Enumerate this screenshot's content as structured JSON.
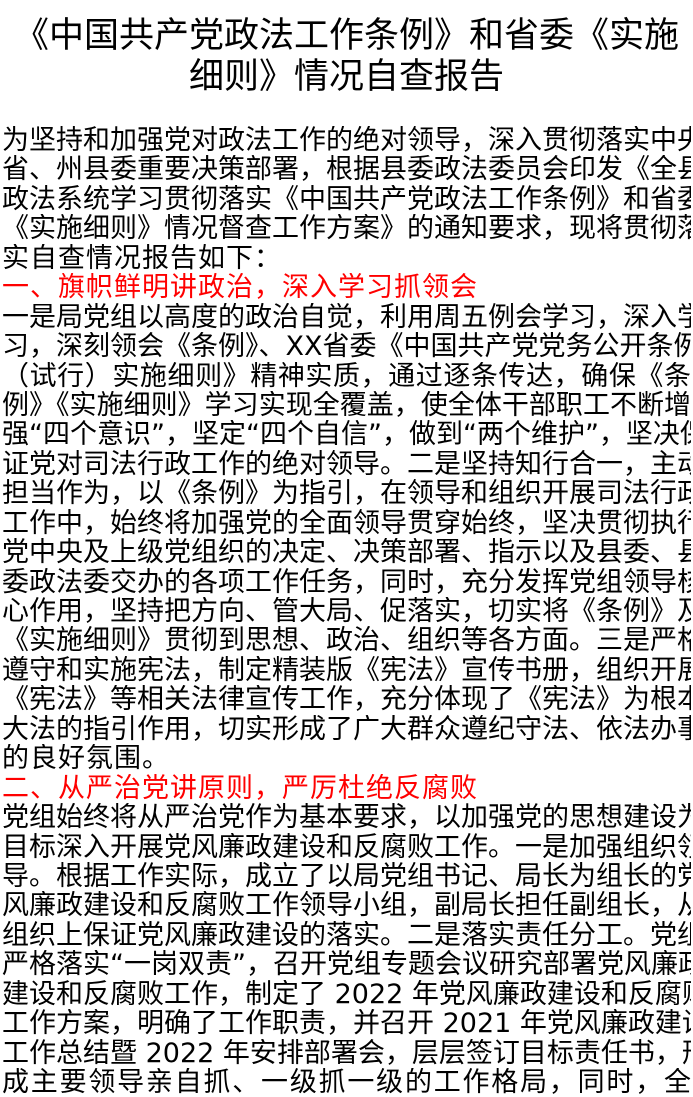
{
  "title": {
    "lines": [
      "《中国共产党政法工作条例》和省委《实施",
      "细则》情况自查报告"
    ]
  },
  "intro": {
    "lines": [
      "为坚持和加强党对政法工作的绝对领导，深入贯彻落实中央",
      "省、州县委重要决策部署，根据县委政法委员会印发《全县",
      "政法系统学习贯彻落实《中国共产党政法工作条例》和省委",
      "《实施细则》情况督查工作方案》的通知要求，现将贯彻落",
      "实自查情况报告如下："
    ]
  },
  "section1": {
    "heading": "一、旗帜鲜明讲政治，深入学习抓领会",
    "lines": [
      "一是局党组以高度的政治自觉，利用周五例会学习，深入学",
      "习，深刻领会《条例》、XX省委《中国共产党党务公开条例",
      "（试行）实施细则》精神实质，通过逐条传达，确保《条",
      "例》《实施细则》学习实现全覆盖，使全体干部职工不断增",
      "强“四个意识”，坚定“四个自信”，做到“两个维护”，坚决保",
      "证党对司法行政工作的绝对领导。二是坚持知行合一，主动",
      "担当作为，以《条例》为指引，在领导和组织开展司法行政",
      "工作中，始终将加强党的全面领导贯穿始终，坚决贯彻执行",
      "党中央及上级党组织的决定、决策部署、指示以及县委、县",
      "委政法委交办的各项工作任务，同时，充分发挥党组领导核",
      "心作用，坚持把方向、管大局、促落实，切实将《条例》及",
      "《实施细则》贯彻到思想、政治、组织等各方面。三是严格",
      "遵守和实施宪法，制定精装版《宪法》宣传书册，组织开展",
      "《宪法》等相关法律宣传工作，充分体现了《宪法》为根本",
      "大法的指引作用，切实形成了广大群众遵纪守法、依法办事",
      "的良好氛围。"
    ]
  },
  "section2": {
    "heading": "二、从严治党讲原则，严厉杜绝反腐败",
    "lines": [
      "党组始终将从严治党作为基本要求，以加强党的思想建设为",
      "目标深入开展党风廉政建设和反腐败工作。一是加强组织领",
      "导。根据工作实际，成立了以局党组书记、局长为组长的党",
      "风廉政建设和反腐败工作领导小组，副局长担任副组长，从",
      "组织上保证党风廉政建设的落实。二是落实责任分工。党组",
      "严格落实“一岗双责”，召开党组专题会议研究部署党风廉政",
      "建设和反腐败工作，制定了 2022 年党风廉政建设和反腐败",
      "工作方案，明确了工作职责，并召开 2021 年党风廉政建设",
      "工作总结暨 2022 年安排部署会，层层签订目标责任书，形",
      "成主要领导亲自抓、一级抓一级的工作格局，同时，全"
    ]
  },
  "colors": {
    "heading": "#ff0000",
    "text": "#000000"
  }
}
